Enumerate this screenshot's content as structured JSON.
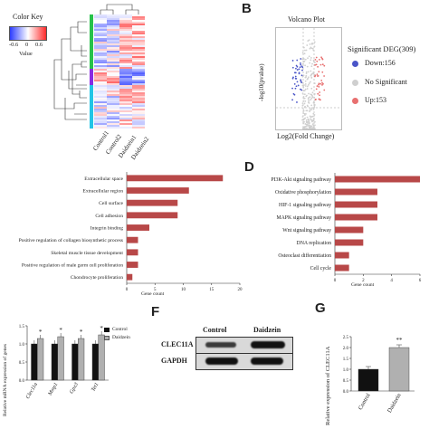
{
  "panelA": {
    "color_key_title": "Color Key",
    "color_key_ticks": [
      "-0.6",
      "0",
      "0.6"
    ],
    "color_key_value_label": "Value",
    "samples": [
      "Control1",
      "Control2",
      "Daidzein1",
      "Daidzein2"
    ],
    "colors": {
      "low": "#2c3cff",
      "mid": "#ffffff",
      "high": "#ff2a2a",
      "bar_green": "#27c24a",
      "bar_purple": "#8a2be2",
      "bar_cyan": "#22c5e6"
    }
  },
  "panelB": {
    "letter": "B",
    "title": "Volcano Plot",
    "xlabel": "Log2(Fold Change)",
    "ylabel": "-log10(pvalue)",
    "legend_title": "Significant DEG(309)",
    "legend": [
      {
        "label": "Down:156",
        "color": "#4a55c8"
      },
      {
        "label": "No Significant",
        "color": "#cfcfcf"
      },
      {
        "label": "Up:153",
        "color": "#e87070"
      }
    ]
  },
  "panelC": {
    "xlabel": "Gene count",
    "chart_data": {
      "type": "bar",
      "orientation": "horizontal",
      "categories": [
        "Extracellular space",
        "Extracellular region",
        "Cell surface",
        "Cell adhesion",
        "Integrin binding",
        "Positive regulation of collagen biosynthetic process",
        "Skeletal muscle tissue development",
        "Positive regulation of male germ cell proliferation",
        "Chondrocyte proliferation"
      ],
      "values": [
        17,
        11,
        9,
        9,
        4,
        2,
        2,
        2,
        1
      ],
      "xlim": [
        0,
        20
      ],
      "xticks": [
        "0",
        "5",
        "10",
        "15",
        "20"
      ],
      "color": "#b84848"
    }
  },
  "panelD": {
    "letter": "D",
    "xlabel": "Gene count",
    "chart_data": {
      "type": "bar",
      "orientation": "horizontal",
      "categories": [
        "PI3K-Akt signaling pathway",
        "Oxidative phosphorylation",
        "HIF-1 signaling pathway",
        "MAPK signaling pathway",
        "Wnt signaling pathway",
        "DNA replication",
        "Osteoclast differentiation",
        "Cell cycle"
      ],
      "values": [
        6,
        3,
        3,
        3,
        2,
        2,
        1,
        1
      ],
      "xlim": [
        0,
        6
      ],
      "xticks": [
        "0",
        "2",
        "4",
        "6"
      ],
      "color": "#b84848"
    }
  },
  "panelE": {
    "ylabel": "Relative mRNA expression of genes",
    "legend": [
      {
        "label": "Control",
        "color": "#111111"
      },
      {
        "label": "Daidzein",
        "color": "#b0b0b0"
      }
    ],
    "chart_data": {
      "type": "bar",
      "categories": [
        "Clec11a",
        "Mmp1",
        "Gpx3",
        "Tet1"
      ],
      "series": [
        {
          "name": "Control",
          "values": [
            1.0,
            1.0,
            1.0,
            1.0
          ]
        },
        {
          "name": "Daidzein",
          "values": [
            1.15,
            1.2,
            1.15,
            1.25
          ]
        }
      ],
      "ylim": [
        0,
        1.5
      ],
      "yticks": [
        "0.0",
        "0.5",
        "1.0",
        "1.5"
      ],
      "annotations": [
        "*",
        "*",
        "*",
        "*"
      ]
    }
  },
  "panelF": {
    "letter": "F",
    "columns": [
      "Control",
      "Daidzein"
    ],
    "rows": [
      "CLEC11A",
      "GAPDH"
    ]
  },
  "panelG": {
    "letter": "G",
    "ylabel": "Relative expression of CLEC11A",
    "chart_data": {
      "type": "bar",
      "categories": [
        "Control",
        "Daidzein"
      ],
      "values": [
        1.0,
        2.0
      ],
      "ylim": [
        0,
        2.5
      ],
      "yticks": [
        "0.0",
        "0.5",
        "1.0",
        "1.5",
        "2.0",
        "2.5"
      ],
      "annotation": "**",
      "colors": [
        "#111111",
        "#b0b0b0"
      ]
    }
  }
}
